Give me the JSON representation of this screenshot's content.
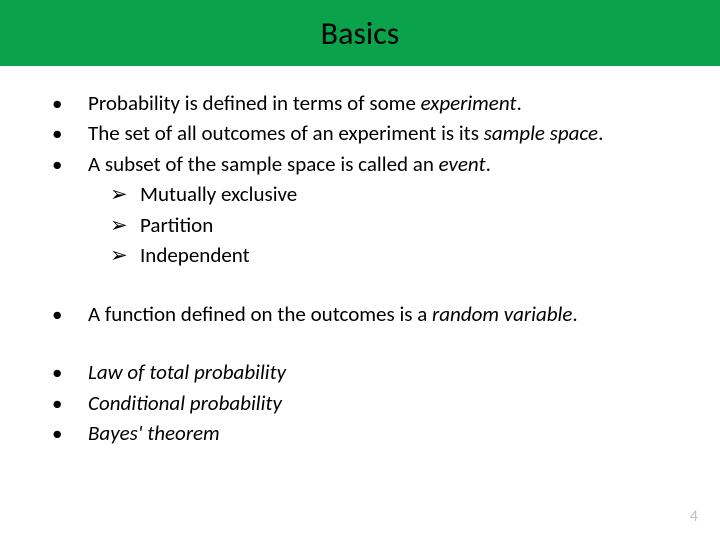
{
  "colors": {
    "header_bg": "#0aa24a",
    "page_bg": "#ffffff",
    "text": "#000000",
    "page_num": "#bfbfbf"
  },
  "typography": {
    "title_fontsize": 32,
    "body_fontsize": 21,
    "pagenum_fontsize": 16,
    "font_family": "Calibri"
  },
  "title": "Basics",
  "group1": {
    "b1": {
      "pre": "Probability is defined in terms of some ",
      "em": "experiment",
      "post": "."
    },
    "b2": {
      "pre": "The set of all outcomes of an experiment is its ",
      "em": "sample space",
      "post": "."
    },
    "b3": {
      "pre": "A subset of the sample space is called an ",
      "em": "event",
      "post": "."
    },
    "subs": [
      "Mutually exclusive",
      "Partition",
      "Independent"
    ]
  },
  "group2": {
    "b1": {
      "pre": "A function defined on the outcomes is a ",
      "em": "random variable",
      "post": "."
    }
  },
  "group3": {
    "items": [
      "Law of total probability",
      "Conditional probability",
      "Bayes' theorem"
    ]
  },
  "page_number": "4",
  "glyphs": {
    "bullet": "•",
    "arrow": "➢"
  }
}
